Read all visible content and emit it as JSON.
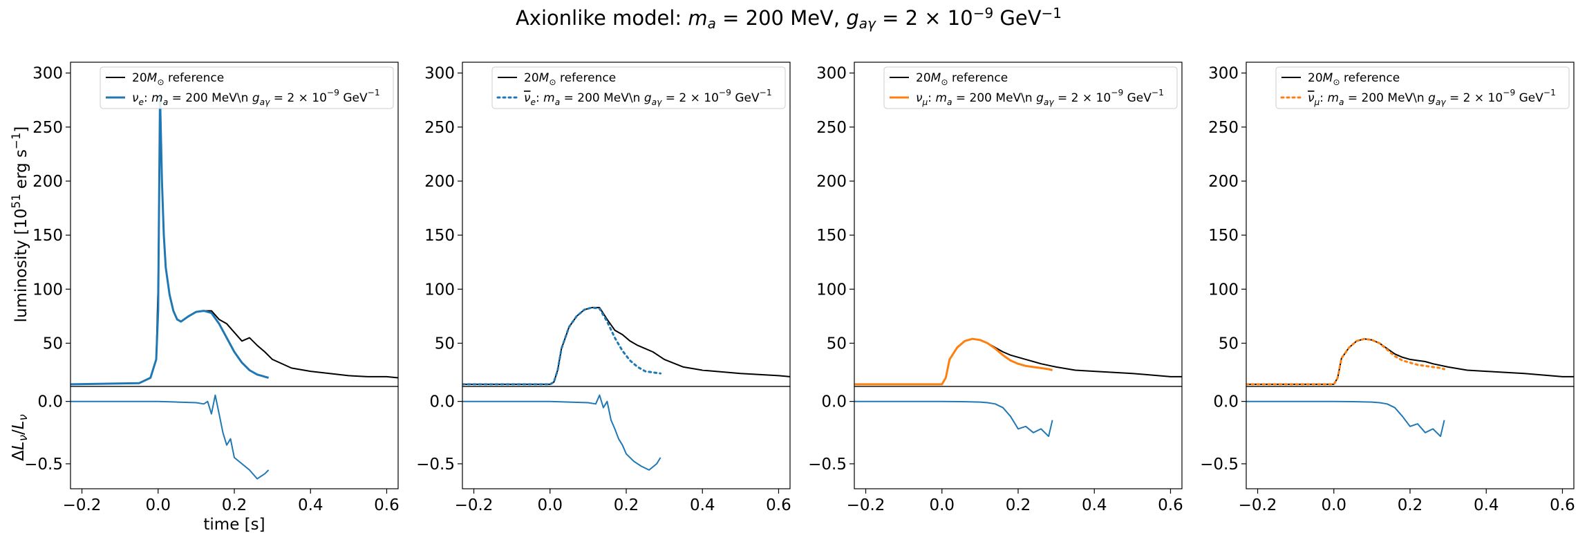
{
  "suptitle": "Axionlike model: m_a = 200 MeV, g_aγ = 2 × 10^−9 GeV^−1",
  "colors": {
    "reference": "#000000",
    "nu_e": "#1f77b4",
    "nu_mu": "#ff7f0e",
    "residual": "#1f77b4"
  },
  "chart_data": [
    {
      "type": "line",
      "panel": "ν_e",
      "ylabel": "luminosity [10^51 erg s^−1]",
      "xlabel": "time [s]",
      "ylim": [
        10,
        310
      ],
      "yticks": [
        50,
        100,
        150,
        200,
        250,
        300
      ],
      "xlim": [
        -0.23,
        0.63
      ],
      "xticks": [
        -0.2,
        0.0,
        0.2,
        0.4,
        0.6
      ],
      "legend": {
        "placement": "top-right",
        "entries": [
          "20M⊙ reference",
          "νe: ma = 200 MeV\\n     gaγ = 2 × 10−9 GeV−1"
        ]
      },
      "series": [
        {
          "name": "20M⊙ reference",
          "style": "solid",
          "color": "#000000",
          "x": [
            -0.23,
            -0.05,
            -0.02,
            -0.005,
            0.0,
            0.005,
            0.01,
            0.015,
            0.02,
            0.03,
            0.04,
            0.05,
            0.06,
            0.08,
            0.1,
            0.12,
            0.14,
            0.16,
            0.18,
            0.2,
            0.22,
            0.24,
            0.26,
            0.28,
            0.3,
            0.35,
            0.4,
            0.45,
            0.5,
            0.55,
            0.6,
            0.63
          ],
          "y": [
            12,
            13,
            18,
            35,
            105,
            270,
            200,
            150,
            120,
            95,
            80,
            72,
            70,
            75,
            79,
            80,
            80,
            72,
            68,
            60,
            52,
            55,
            48,
            42,
            35,
            27,
            24,
            22,
            20,
            19,
            19,
            18
          ]
        },
        {
          "name": "νe: ma = 200 MeV\\n     gaγ = 2 × 10−9 GeV−1",
          "style": "solid",
          "color": "#1f77b4",
          "x": [
            -0.23,
            -0.05,
            -0.02,
            -0.005,
            0.0,
            0.005,
            0.01,
            0.015,
            0.02,
            0.03,
            0.04,
            0.05,
            0.06,
            0.08,
            0.1,
            0.12,
            0.14,
            0.16,
            0.18,
            0.2,
            0.22,
            0.24,
            0.26,
            0.28,
            0.29
          ],
          "y": [
            12,
            13,
            18,
            35,
            80,
            280,
            200,
            150,
            120,
            95,
            80,
            72,
            70,
            75,
            79,
            80,
            78,
            68,
            55,
            42,
            32,
            25,
            21,
            19,
            18
          ]
        }
      ],
      "residual": {
        "ylabel": "ΔL_ν/L_ν",
        "ylim": [
          -0.7,
          0.12
        ],
        "yticks": [
          0.0,
          -0.5
        ],
        "x": [
          -0.23,
          0.0,
          0.05,
          0.1,
          0.12,
          0.13,
          0.14,
          0.15,
          0.16,
          0.17,
          0.18,
          0.19,
          0.2,
          0.22,
          0.24,
          0.26,
          0.28,
          0.29
        ],
        "y": [
          0.0,
          0.0,
          -0.005,
          -0.01,
          -0.02,
          0.0,
          -0.1,
          0.05,
          -0.1,
          -0.25,
          -0.35,
          -0.3,
          -0.45,
          -0.5,
          -0.55,
          -0.62,
          -0.58,
          -0.55
        ]
      }
    },
    {
      "type": "line",
      "panel": "anti-ν_e",
      "ylim": [
        10,
        310
      ],
      "yticks": [
        50,
        100,
        150,
        200,
        250,
        300
      ],
      "xlim": [
        -0.23,
        0.63
      ],
      "xticks": [
        -0.2,
        0.0,
        0.2,
        0.4,
        0.6
      ],
      "legend": {
        "placement": "top-right",
        "entries": [
          "20M⊙ reference",
          "ν̄e: ma = 200 MeV\\n     gaγ = 2 × 10−9 GeV−1"
        ]
      },
      "series": [
        {
          "name": "20M⊙ reference",
          "style": "solid",
          "color": "#000000",
          "x": [
            -0.23,
            0.0,
            0.01,
            0.02,
            0.03,
            0.05,
            0.07,
            0.09,
            0.11,
            0.13,
            0.15,
            0.17,
            0.19,
            0.21,
            0.23,
            0.25,
            0.27,
            0.3,
            0.35,
            0.4,
            0.5,
            0.6,
            0.63
          ],
          "y": [
            12,
            12,
            14,
            25,
            45,
            65,
            75,
            81,
            83,
            83,
            72,
            62,
            58,
            52,
            48,
            45,
            42,
            35,
            28,
            25,
            22,
            20,
            19
          ]
        },
        {
          "name": "ν̄e: ma = 200 MeV\\n     gaγ = 2 × 10−9 GeV−1",
          "style": "dotted",
          "color": "#1f77b4",
          "x": [
            -0.23,
            0.0,
            0.01,
            0.02,
            0.03,
            0.05,
            0.07,
            0.09,
            0.11,
            0.13,
            0.15,
            0.17,
            0.19,
            0.21,
            0.23,
            0.25,
            0.27,
            0.29
          ],
          "y": [
            12,
            12,
            14,
            25,
            45,
            65,
            75,
            81,
            83,
            82,
            70,
            55,
            43,
            34,
            28,
            24,
            23,
            22
          ]
        }
      ],
      "residual": {
        "ylim": [
          -0.7,
          0.12
        ],
        "yticks": [
          0.0,
          -0.5
        ],
        "x": [
          -0.23,
          0.0,
          0.05,
          0.1,
          0.12,
          0.13,
          0.14,
          0.15,
          0.16,
          0.17,
          0.18,
          0.19,
          0.2,
          0.22,
          0.24,
          0.26,
          0.28,
          0.29
        ],
        "y": [
          0.0,
          0.0,
          -0.005,
          -0.01,
          -0.02,
          0.05,
          -0.05,
          0.0,
          -0.15,
          -0.22,
          -0.3,
          -0.35,
          -0.42,
          -0.48,
          -0.52,
          -0.55,
          -0.5,
          -0.45
        ]
      }
    },
    {
      "type": "line",
      "panel": "ν_μ",
      "ylim": [
        10,
        310
      ],
      "yticks": [
        50,
        100,
        150,
        200,
        250,
        300
      ],
      "xlim": [
        -0.23,
        0.63
      ],
      "xticks": [
        -0.2,
        0.0,
        0.2,
        0.4,
        0.6
      ],
      "legend": {
        "placement": "top-right",
        "entries": [
          "20M⊙ reference",
          "νμ: ma = 200 MeV\\n     gaγ = 2 × 10−9 GeV−1"
        ]
      },
      "series": [
        {
          "name": "20M⊙ reference",
          "style": "solid",
          "color": "#000000",
          "x": [
            -0.23,
            0.0,
            0.01,
            0.02,
            0.04,
            0.06,
            0.08,
            0.1,
            0.12,
            0.14,
            0.16,
            0.18,
            0.2,
            0.22,
            0.24,
            0.26,
            0.3,
            0.35,
            0.4,
            0.5,
            0.6,
            0.63
          ],
          "y": [
            12,
            12,
            18,
            35,
            46,
            52,
            54,
            53,
            50,
            46,
            42,
            39,
            37,
            35,
            33,
            31,
            28,
            25,
            24,
            22,
            19,
            19
          ]
        },
        {
          "name": "νμ: ma = 200 MeV\\n     gaγ = 2 × 10−9 GeV−1",
          "style": "solid",
          "color": "#ff7f0e",
          "x": [
            -0.23,
            0.0,
            0.01,
            0.02,
            0.04,
            0.06,
            0.08,
            0.1,
            0.12,
            0.14,
            0.16,
            0.18,
            0.2,
            0.22,
            0.24,
            0.26,
            0.28,
            0.29
          ],
          "y": [
            12,
            12,
            18,
            35,
            46,
            52,
            54,
            53,
            50,
            45,
            39,
            34,
            31,
            29,
            28,
            27,
            26,
            25
          ]
        }
      ],
      "residual": {
        "ylim": [
          -0.7,
          0.12
        ],
        "yticks": [
          0.0,
          -0.5
        ],
        "x": [
          -0.23,
          0.0,
          0.05,
          0.1,
          0.12,
          0.14,
          0.16,
          0.18,
          0.2,
          0.22,
          0.24,
          0.26,
          0.28,
          0.29
        ],
        "y": [
          0.0,
          0.0,
          -0.002,
          -0.005,
          -0.01,
          -0.02,
          -0.05,
          -0.12,
          -0.22,
          -0.2,
          -0.25,
          -0.22,
          -0.28,
          -0.15
        ]
      }
    },
    {
      "type": "line",
      "panel": "anti-ν_μ",
      "ylim": [
        10,
        310
      ],
      "yticks": [
        50,
        100,
        150,
        200,
        250,
        300
      ],
      "xlim": [
        -0.23,
        0.63
      ],
      "xticks": [
        -0.2,
        0.0,
        0.2,
        0.4,
        0.6
      ],
      "legend": {
        "placement": "top-right",
        "entries": [
          "20M⊙ reference",
          "ν̄μ: ma = 200 MeV\\n     gaγ = 2 × 10−9 GeV−1"
        ]
      },
      "series": [
        {
          "name": "20M⊙ reference",
          "style": "solid",
          "color": "#000000",
          "x": [
            -0.23,
            0.0,
            0.01,
            0.02,
            0.04,
            0.06,
            0.08,
            0.1,
            0.12,
            0.14,
            0.16,
            0.18,
            0.2,
            0.22,
            0.24,
            0.26,
            0.3,
            0.35,
            0.4,
            0.5,
            0.6,
            0.63
          ],
          "y": [
            12,
            12,
            18,
            36,
            46,
            52,
            54,
            53,
            50,
            45,
            40,
            37,
            35,
            34,
            33,
            31,
            28,
            25,
            24,
            22,
            19,
            19
          ]
        },
        {
          "name": "ν̄μ: ma = 200 MeV\\n     gaγ = 2 × 10−9 GeV−1",
          "style": "dotted",
          "color": "#ff7f0e",
          "x": [
            -0.23,
            0.0,
            0.01,
            0.02,
            0.04,
            0.06,
            0.08,
            0.1,
            0.12,
            0.14,
            0.16,
            0.18,
            0.2,
            0.22,
            0.24,
            0.26,
            0.28,
            0.29
          ],
          "y": [
            12,
            12,
            18,
            36,
            46,
            52,
            54,
            53,
            50,
            44,
            38,
            34,
            32,
            30,
            29,
            28,
            27,
            26
          ]
        }
      ],
      "residual": {
        "ylim": [
          -0.7,
          0.12
        ],
        "yticks": [
          0.0,
          -0.5
        ],
        "x": [
          -0.23,
          0.0,
          0.05,
          0.1,
          0.12,
          0.14,
          0.16,
          0.18,
          0.2,
          0.22,
          0.24,
          0.26,
          0.28,
          0.29
        ],
        "y": [
          0.0,
          0.0,
          -0.002,
          -0.005,
          -0.01,
          -0.02,
          -0.05,
          -0.12,
          -0.2,
          -0.18,
          -0.25,
          -0.22,
          -0.28,
          -0.15
        ]
      }
    }
  ]
}
